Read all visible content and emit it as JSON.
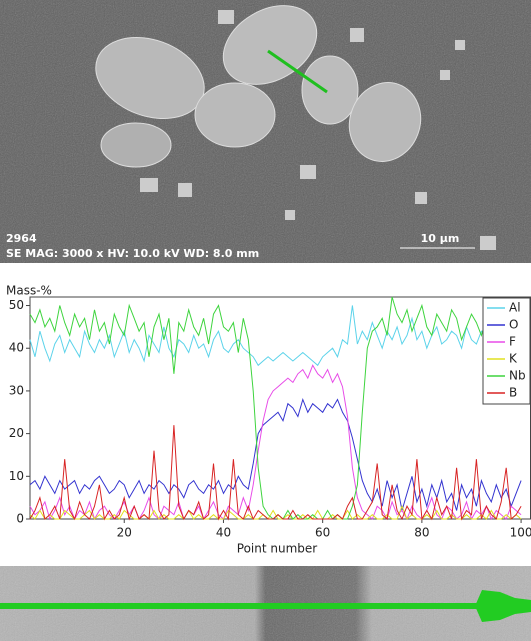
{
  "sem_image": {
    "sample_id": "2964",
    "acquisition": "SE MAG: 3000 x HV: 10.0 kV WD: 8.0 mm",
    "scale_bar": "10 µm"
  },
  "chart_data": {
    "type": "line",
    "ylabel": "Mass-%",
    "xlabel": "Point number",
    "xlim": [
      1,
      102
    ],
    "ylim": [
      0,
      52
    ],
    "xticks": [
      20,
      40,
      60,
      80,
      100
    ],
    "yticks": [
      0,
      10,
      20,
      30,
      40,
      50
    ],
    "legend": "upper right",
    "x": [
      1,
      2,
      3,
      4,
      5,
      6,
      7,
      8,
      9,
      10,
      11,
      12,
      13,
      14,
      15,
      16,
      17,
      18,
      19,
      20,
      21,
      22,
      23,
      24,
      25,
      26,
      27,
      28,
      29,
      30,
      31,
      32,
      33,
      34,
      35,
      36,
      37,
      38,
      39,
      40,
      41,
      42,
      43,
      44,
      45,
      46,
      47,
      48,
      49,
      50,
      51,
      52,
      53,
      54,
      55,
      56,
      57,
      58,
      59,
      60,
      61,
      62,
      63,
      64,
      65,
      66,
      67,
      68,
      69,
      70,
      71,
      72,
      73,
      74,
      75,
      76,
      77,
      78,
      79,
      80,
      81,
      82,
      83,
      84,
      85,
      86,
      87,
      88,
      89,
      90,
      91,
      92,
      93,
      94,
      95,
      96,
      97,
      98,
      99,
      100
    ],
    "series": [
      {
        "name": "Al",
        "color": "#5cd3ea",
        "values": [
          42,
          38,
          44,
          40,
          37,
          41,
          43,
          39,
          42,
          40,
          38,
          44,
          41,
          39,
          42,
          40,
          43,
          38,
          41,
          44,
          39,
          42,
          40,
          37,
          43,
          41,
          39,
          45,
          40,
          38,
          42,
          41,
          39,
          43,
          40,
          41,
          38,
          42,
          44,
          40,
          39,
          41,
          42,
          40,
          39,
          38,
          36,
          37,
          38,
          37,
          38,
          39,
          38,
          37,
          38,
          39,
          38,
          37,
          36,
          38,
          39,
          40,
          38,
          42,
          41,
          50,
          41,
          44,
          42,
          46,
          43,
          40,
          44,
          42,
          45,
          41,
          43,
          47,
          42,
          44,
          40,
          43,
          45,
          41,
          42,
          44,
          43,
          40,
          45,
          42,
          41,
          44,
          43,
          42,
          45,
          41,
          44,
          43,
          42,
          44
        ]
      },
      {
        "name": "O",
        "color": "#3434d0",
        "values": [
          8,
          9,
          7,
          10,
          8,
          6,
          9,
          7,
          8,
          9,
          6,
          8,
          7,
          9,
          10,
          8,
          6,
          7,
          9,
          8,
          5,
          7,
          9,
          6,
          8,
          7,
          9,
          8,
          6,
          8,
          7,
          5,
          8,
          9,
          7,
          6,
          8,
          7,
          9,
          6,
          8,
          7,
          10,
          8,
          7,
          13,
          20,
          22,
          23,
          24,
          25,
          23,
          27,
          26,
          24,
          28,
          25,
          27,
          26,
          25,
          27,
          26,
          28,
          25,
          23,
          19,
          14,
          9,
          6,
          4,
          7,
          3,
          9,
          5,
          8,
          2,
          6,
          10,
          4,
          7,
          3,
          8,
          5,
          9,
          4,
          6,
          2,
          8,
          5,
          7,
          3,
          9,
          6,
          4,
          8,
          5,
          7,
          3,
          6,
          9
        ]
      },
      {
        "name": "F",
        "color": "#e84ce8",
        "values": [
          3,
          1,
          2,
          4,
          0,
          2,
          5,
          1,
          3,
          0,
          2,
          1,
          4,
          0,
          2,
          3,
          1,
          0,
          2,
          4,
          1,
          3,
          0,
          2,
          5,
          1,
          0,
          3,
          2,
          1,
          4,
          0,
          2,
          1,
          3,
          0,
          2,
          4,
          1,
          0,
          3,
          2,
          1,
          5,
          2,
          8,
          16,
          23,
          28,
          30,
          31,
          32,
          33,
          32,
          34,
          35,
          33,
          36,
          34,
          33,
          35,
          32,
          34,
          31,
          24,
          12,
          5,
          2,
          1,
          0,
          3,
          2,
          0,
          4,
          1,
          2,
          0,
          3,
          1,
          0,
          2,
          5,
          1,
          0,
          3,
          2,
          0,
          1,
          4,
          0,
          2,
          1,
          3,
          0,
          2,
          1,
          0,
          3,
          2,
          1
        ]
      },
      {
        "name": "K",
        "color": "#e0e020",
        "values": [
          1,
          0,
          2,
          0,
          1,
          0,
          0,
          2,
          1,
          0,
          0,
          1,
          2,
          0,
          1,
          0,
          0,
          1,
          0,
          2,
          1,
          0,
          0,
          1,
          0,
          2,
          0,
          1,
          0,
          0,
          1,
          0,
          2,
          0,
          1,
          0,
          0,
          1,
          0,
          0,
          2,
          1,
          0,
          0,
          1,
          0,
          0,
          1,
          0,
          2,
          0,
          0,
          1,
          0,
          0,
          1,
          0,
          0,
          2,
          0,
          0,
          1,
          0,
          0,
          2,
          0,
          1,
          0,
          0,
          1,
          0,
          0,
          1,
          0,
          0,
          3,
          0,
          1,
          0,
          0,
          1,
          0,
          2,
          0,
          0,
          1,
          0,
          0,
          1,
          0,
          0,
          1,
          0,
          2,
          0,
          0,
          1,
          0,
          1,
          0
        ]
      },
      {
        "name": "Nb",
        "color": "#3ed43e",
        "values": [
          48,
          46,
          49,
          45,
          47,
          44,
          50,
          46,
          43,
          48,
          45,
          47,
          42,
          49,
          44,
          46,
          41,
          48,
          45,
          43,
          50,
          47,
          44,
          46,
          38,
          45,
          48,
          42,
          47,
          34,
          46,
          44,
          49,
          45,
          43,
          47,
          41,
          48,
          50,
          45,
          44,
          46,
          39,
          47,
          42,
          30,
          12,
          3,
          1,
          0,
          1,
          0,
          2,
          0,
          1,
          0,
          0,
          1,
          0,
          0,
          2,
          0,
          1,
          0,
          0,
          3,
          8,
          25,
          40,
          44,
          45,
          47,
          43,
          52,
          48,
          46,
          49,
          44,
          47,
          50,
          45,
          43,
          48,
          46,
          44,
          49,
          47,
          42,
          45,
          48,
          46,
          43,
          47,
          45,
          49,
          44,
          46,
          48,
          45,
          47
        ]
      },
      {
        "name": "B",
        "color": "#d82424",
        "values": [
          0,
          2,
          5,
          0,
          1,
          3,
          0,
          14,
          2,
          0,
          4,
          1,
          0,
          3,
          8,
          0,
          2,
          0,
          1,
          5,
          0,
          3,
          0,
          1,
          0,
          16,
          2,
          0,
          1,
          22,
          3,
          0,
          2,
          1,
          4,
          0,
          1,
          13,
          0,
          2,
          0,
          14,
          1,
          0,
          3,
          0,
          2,
          1,
          0,
          0,
          1,
          0,
          0,
          2,
          0,
          0,
          1,
          0,
          0,
          0,
          0,
          0,
          1,
          0,
          3,
          5,
          0,
          0,
          2,
          4,
          13,
          1,
          0,
          8,
          2,
          0,
          3,
          1,
          14,
          0,
          2,
          0,
          5,
          1,
          3,
          0,
          12,
          0,
          2,
          1,
          14,
          0,
          3,
          1,
          0,
          4,
          12,
          0,
          1,
          3
        ]
      }
    ]
  }
}
